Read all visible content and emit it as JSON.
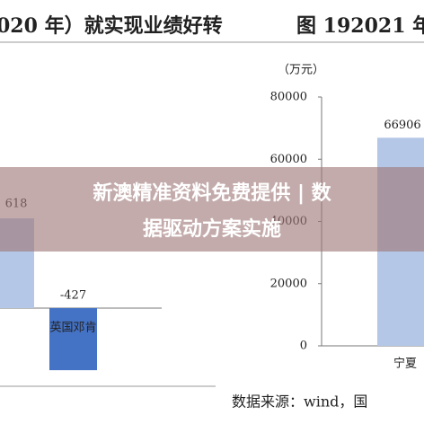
{
  "header": {
    "left": "020 年）就实现业绩好转",
    "right": "图 192021 年"
  },
  "chart_data": [
    {
      "type": "bar",
      "categories": [
        null,
        "英国邓肯"
      ],
      "values": [
        618,
        -427
      ],
      "color": "#b4c7e7",
      "negative_color": "#4472c4"
    },
    {
      "type": "bar",
      "unit": "（万元）",
      "categories": [
        "宁夏"
      ],
      "values": [
        66906
      ],
      "color": "#b4c7e7",
      "ylim": [
        0,
        80000
      ],
      "yticks": [
        0,
        20000,
        40000,
        60000,
        80000
      ]
    }
  ],
  "footer": "数据来源：wind，国",
  "banner": {
    "line1": "新澳精准资料免费提供 | 数",
    "line2": "据驱动方案实施"
  }
}
